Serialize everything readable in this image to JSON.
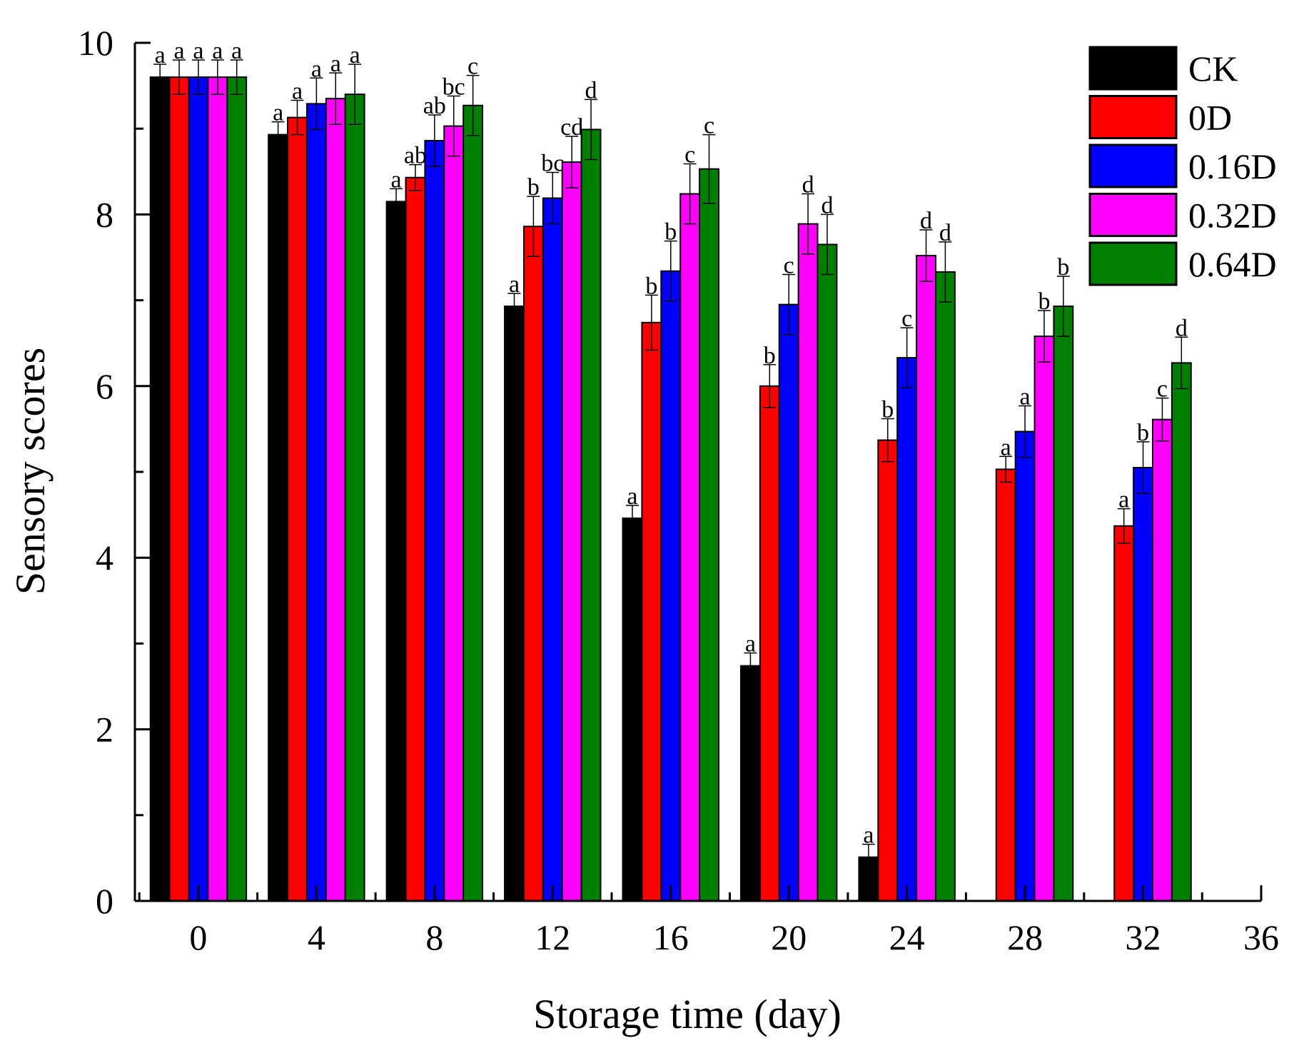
{
  "chart_data": {
    "type": "bar",
    "title": "",
    "xlabel": "Storage time (day)",
    "ylabel": "Sensory scores",
    "xlim": [
      -2.15,
      36
    ],
    "ylim": [
      0,
      10
    ],
    "x_ticks": [
      "0",
      "4",
      "8",
      "12",
      "16",
      "20",
      "24",
      "28",
      "32",
      "36"
    ],
    "y_ticks": [
      "0",
      "2",
      "4",
      "6",
      "8",
      "10"
    ],
    "categories": [
      0,
      4,
      8,
      12,
      16,
      20,
      24,
      28,
      32
    ],
    "legend_position": "top-right",
    "grid": false,
    "series": [
      {
        "name": "CK",
        "color": "#000000",
        "values": [
          9.6,
          8.93,
          8.15,
          6.93,
          4.46,
          2.74,
          0.51,
          null,
          null
        ],
        "errors": [
          0.15,
          0.15,
          0.15,
          0.15,
          0.15,
          0.15,
          0.15,
          null,
          null
        ],
        "letters": [
          "a",
          "a",
          "a",
          "a",
          "a",
          "a",
          "a",
          null,
          null
        ]
      },
      {
        "name": "0D",
        "color": "#ff0000",
        "values": [
          9.6,
          9.13,
          8.43,
          7.86,
          6.74,
          6.0,
          5.37,
          5.03,
          4.37
        ],
        "errors": [
          0.2,
          0.2,
          0.15,
          0.35,
          0.32,
          0.25,
          0.25,
          0.15,
          0.2
        ],
        "letters": [
          "a",
          "a",
          "ab",
          "b",
          "b",
          "b",
          "b",
          "a",
          "a"
        ]
      },
      {
        "name": "0.16D",
        "color": "#0000ff",
        "values": [
          9.6,
          9.29,
          8.86,
          8.19,
          7.34,
          6.95,
          6.33,
          5.47,
          5.05
        ],
        "errors": [
          0.2,
          0.3,
          0.3,
          0.3,
          0.35,
          0.35,
          0.35,
          0.3,
          0.3
        ],
        "letters": [
          "a",
          "a",
          "ab",
          "bc",
          "b",
          "c",
          "c",
          "a",
          "b"
        ]
      },
      {
        "name": "0.32D",
        "color": "#ff00ff",
        "values": [
          9.6,
          9.35,
          9.03,
          8.61,
          8.24,
          7.89,
          7.52,
          6.58,
          5.61
        ],
        "errors": [
          0.2,
          0.3,
          0.35,
          0.3,
          0.35,
          0.35,
          0.3,
          0.3,
          0.25
        ],
        "letters": [
          "a",
          "a",
          "bc",
          "cd",
          "c",
          "d",
          "d",
          "b",
          "c"
        ]
      },
      {
        "name": "0.64D",
        "color": "#008000",
        "values": [
          9.6,
          9.4,
          9.27,
          8.99,
          8.53,
          7.65,
          7.33,
          6.93,
          6.27
        ],
        "errors": [
          0.2,
          0.35,
          0.35,
          0.35,
          0.4,
          0.35,
          0.35,
          0.35,
          0.3
        ],
        "letters": [
          "a",
          "a",
          "c",
          "d",
          "c",
          "d",
          "d",
          "b",
          "d"
        ]
      }
    ]
  }
}
